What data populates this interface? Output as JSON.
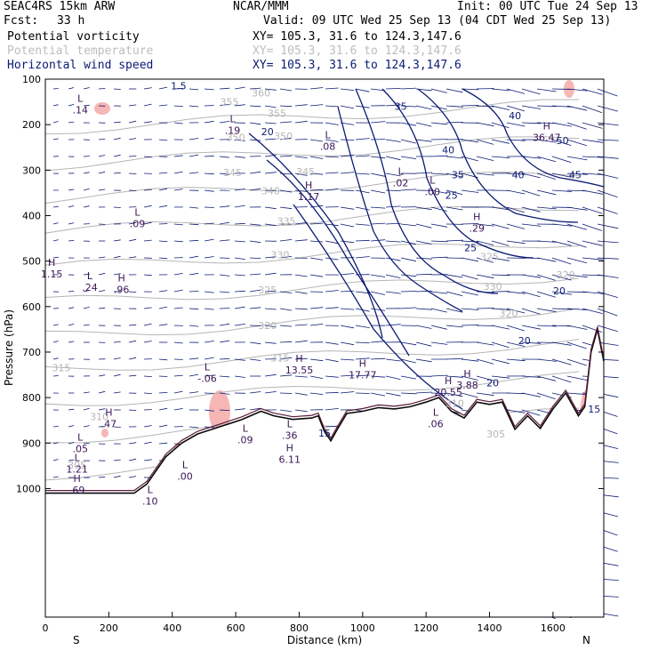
{
  "header": {
    "model": "SEAC4RS 15km ARW",
    "org": "NCAR/MMM",
    "init": "Init: 00 UTC Tue 24 Sep 13",
    "fcst_label": "Fcst:",
    "fcst_value": "33 h",
    "valid": "Valid: 09 UTC Wed 25 Sep 13 (04 CDT Wed 25 Sep 13)",
    "fields": [
      {
        "name": "Potential vorticity",
        "xy": "XY= 105.3, 31.6 to 124.3,147.6",
        "color": "#000000"
      },
      {
        "name": "Potential temperature",
        "xy": "XY= 105.3, 31.6 to 124.3,147.6",
        "color": "#bdbdbd"
      },
      {
        "name": "Horizontal wind speed",
        "xy": "XY= 105.3, 31.6 to 124.3,147.6",
        "color": "#0b1a74"
      }
    ]
  },
  "chart_data": {
    "type": "cross-section",
    "xlabel": "Distance (km)",
    "ylabel": "Pressure (hPa)",
    "xlim": [
      0,
      1760
    ],
    "ylim": [
      1050,
      100
    ],
    "x_ticks": [
      "0",
      "200",
      "400",
      "600",
      "800",
      "1000",
      "1200",
      "1400",
      "1600"
    ],
    "y_ticks": [
      "100",
      "200",
      "300",
      "400",
      "500",
      "600",
      "700",
      "800",
      "900",
      "1000"
    ],
    "end_labels": {
      "left": "S",
      "right": "N"
    },
    "colors": {
      "terrain": "#0a0a0a",
      "theta": "#b5b5b5",
      "wind": "#0b1a74",
      "pv": "#f6b6b6",
      "pv_contour": "#5a1a3a"
    },
    "terrain": [
      [
        0,
        1010
      ],
      [
        280,
        1010
      ],
      [
        320,
        990
      ],
      [
        380,
        930
      ],
      [
        430,
        900
      ],
      [
        480,
        880
      ],
      [
        560,
        862
      ],
      [
        620,
        848
      ],
      [
        680,
        830
      ],
      [
        720,
        840
      ],
      [
        780,
        848
      ],
      [
        840,
        845
      ],
      [
        860,
        840
      ],
      [
        880,
        875
      ],
      [
        900,
        895
      ],
      [
        920,
        870
      ],
      [
        950,
        835
      ],
      [
        1000,
        830
      ],
      [
        1050,
        822
      ],
      [
        1100,
        825
      ],
      [
        1150,
        820
      ],
      [
        1200,
        810
      ],
      [
        1240,
        800
      ],
      [
        1280,
        830
      ],
      [
        1320,
        845
      ],
      [
        1360,
        810
      ],
      [
        1400,
        815
      ],
      [
        1440,
        810
      ],
      [
        1480,
        870
      ],
      [
        1520,
        840
      ],
      [
        1560,
        868
      ],
      [
        1600,
        825
      ],
      [
        1640,
        790
      ],
      [
        1680,
        840
      ],
      [
        1700,
        820
      ],
      [
        1720,
        700
      ],
      [
        1740,
        650
      ],
      [
        1760,
        720
      ]
    ],
    "wind_speed_labels": [
      {
        "x": 700,
        "p": 215,
        "text": "20"
      },
      {
        "x": 1120,
        "p": 160,
        "text": "35"
      },
      {
        "x": 1270,
        "p": 255,
        "text": "40"
      },
      {
        "x": 1280,
        "p": 355,
        "text": "25"
      },
      {
        "x": 1300,
        "p": 310,
        "text": "35"
      },
      {
        "x": 1340,
        "p": 470,
        "text": "25"
      },
      {
        "x": 1480,
        "p": 180,
        "text": "40"
      },
      {
        "x": 1490,
        "p": 310,
        "text": "40"
      },
      {
        "x": 1630,
        "p": 235,
        "text": "50"
      },
      {
        "x": 1670,
        "p": 310,
        "text": "45"
      },
      {
        "x": 1510,
        "p": 675,
        "text": "20"
      },
      {
        "x": 1410,
        "p": 768,
        "text": "20"
      },
      {
        "x": 1620,
        "p": 565,
        "text": "20"
      },
      {
        "x": 1730,
        "p": 825,
        "text": "15"
      },
      {
        "x": 880,
        "p": 878,
        "text": "15"
      },
      {
        "x": 420,
        "p": 115,
        "text": "1.5"
      }
    ],
    "theta_labels": [
      {
        "x": 580,
        "p": 150,
        "text": "355"
      },
      {
        "x": 680,
        "p": 130,
        "text": "360"
      },
      {
        "x": 730,
        "p": 175,
        "text": "355"
      },
      {
        "x": 600,
        "p": 228,
        "text": "350"
      },
      {
        "x": 750,
        "p": 225,
        "text": "350"
      },
      {
        "x": 590,
        "p": 305,
        "text": "345"
      },
      {
        "x": 820,
        "p": 303,
        "text": "345"
      },
      {
        "x": 710,
        "p": 345,
        "text": "340"
      },
      {
        "x": 760,
        "p": 412,
        "text": "335"
      },
      {
        "x": 740,
        "p": 486,
        "text": "330"
      },
      {
        "x": 700,
        "p": 563,
        "text": "325"
      },
      {
        "x": 700,
        "p": 641,
        "text": "320"
      },
      {
        "x": 740,
        "p": 713,
        "text": "315"
      },
      {
        "x": 50,
        "p": 734,
        "text": "315"
      },
      {
        "x": 170,
        "p": 842,
        "text": "310"
      },
      {
        "x": 1290,
        "p": 812,
        "text": "310"
      },
      {
        "x": 1420,
        "p": 880,
        "text": "305"
      },
      {
        "x": 100,
        "p": 948,
        "text": "305"
      },
      {
        "x": 1410,
        "p": 555,
        "text": "330"
      },
      {
        "x": 1400,
        "p": 490,
        "text": "325"
      },
      {
        "x": 1460,
        "p": 615,
        "text": "320"
      },
      {
        "x": 1640,
        "p": 530,
        "text": "320"
      }
    ],
    "high_low_labels": [
      {
        "x": 110,
        "p": 150,
        "letter": "L",
        "value": ".14"
      },
      {
        "x": 590,
        "p": 195,
        "letter": "L",
        "value": ".19"
      },
      {
        "x": 890,
        "p": 230,
        "letter": "L",
        "value": ".08"
      },
      {
        "x": 1120,
        "p": 310,
        "letter": "L",
        "value": ".02"
      },
      {
        "x": 830,
        "p": 340,
        "letter": "H",
        "value": "1.17"
      },
      {
        "x": 1220,
        "p": 330,
        "letter": "L",
        "value": ".00"
      },
      {
        "x": 290,
        "p": 400,
        "letter": "L",
        "value": ".09"
      },
      {
        "x": 1360,
        "p": 410,
        "letter": "H",
        "value": ".29"
      },
      {
        "x": 20,
        "p": 510,
        "letter": "H",
        "value": "1.15"
      },
      {
        "x": 140,
        "p": 540,
        "letter": "L",
        "value": ".24"
      },
      {
        "x": 240,
        "p": 545,
        "letter": "H",
        "value": ".96"
      },
      {
        "x": 510,
        "p": 740,
        "letter": "L",
        "value": "-.06"
      },
      {
        "x": 800,
        "p": 722,
        "letter": "H",
        "value": "13.55"
      },
      {
        "x": 1000,
        "p": 732,
        "letter": "H",
        "value": "17.77"
      },
      {
        "x": 1270,
        "p": 770,
        "letter": "H",
        "value": "20.55"
      },
      {
        "x": 1330,
        "p": 755,
        "letter": "H",
        "value": "3.88"
      },
      {
        "x": 1580,
        "p": 210,
        "letter": "H",
        "value": "36.47"
      },
      {
        "x": 200,
        "p": 840,
        "letter": "H",
        "value": ".47"
      },
      {
        "x": 1230,
        "p": 840,
        "letter": "L",
        "value": ".06"
      },
      {
        "x": 630,
        "p": 875,
        "letter": "L",
        "value": ".09"
      },
      {
        "x": 770,
        "p": 865,
        "letter": "L",
        "value": ".36"
      },
      {
        "x": 110,
        "p": 895,
        "letter": "L",
        "value": ".05"
      },
      {
        "x": 770,
        "p": 918,
        "letter": "H",
        "value": "6.11"
      },
      {
        "x": 100,
        "p": 940,
        "letter": "L",
        "value": "1.21"
      },
      {
        "x": 440,
        "p": 955,
        "letter": "L",
        "value": ".00"
      },
      {
        "x": 100,
        "p": 985,
        "letter": "H",
        "value": ".69"
      },
      {
        "x": 330,
        "p": 1010,
        "letter": "L",
        "value": ".10"
      }
    ]
  }
}
